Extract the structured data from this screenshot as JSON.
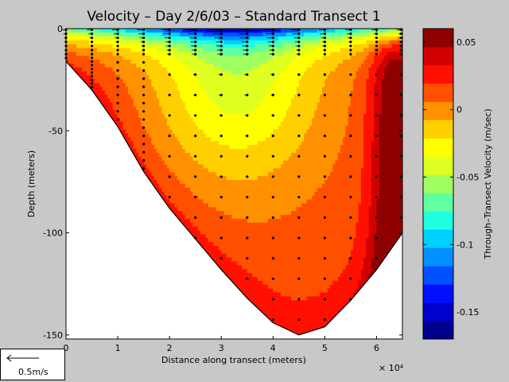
{
  "chart_data": {
    "type": "heatmap",
    "title": "Velocity – Day 2/6/03 – Standard Transect 1",
    "xlabel": "Distance along transect (meters)",
    "ylabel": "Depth (meters)",
    "x_multiplier_label": "× 10⁴",
    "xlim": [
      0,
      65000
    ],
    "ylim": [
      -152,
      0
    ],
    "x_ticks": [
      0,
      10000,
      20000,
      30000,
      40000,
      50000,
      60000
    ],
    "x_tick_labels": [
      "0",
      "1",
      "2",
      "3",
      "4",
      "5",
      "6"
    ],
    "y_ticks": [
      0,
      -50,
      -100,
      -150
    ],
    "y_tick_labels": [
      "0",
      "-50",
      "-100",
      "-150"
    ],
    "bottom_profile": [
      [
        0,
        -16
      ],
      [
        5000,
        -30
      ],
      [
        10000,
        -48
      ],
      [
        15000,
        -70
      ],
      [
        20000,
        -88
      ],
      [
        25000,
        -103
      ],
      [
        30000,
        -118
      ],
      [
        35000,
        -132
      ],
      [
        40000,
        -144
      ],
      [
        45000,
        -150
      ],
      [
        50000,
        -146
      ],
      [
        55000,
        -133
      ],
      [
        60000,
        -118
      ],
      [
        65000,
        -100
      ]
    ],
    "station_x": [
      0,
      5000,
      10000,
      15000,
      20000,
      25000,
      30000,
      35000,
      40000,
      45000,
      50000,
      55000,
      60000,
      65000
    ],
    "colorbar": {
      "label": "Through–Transect Velocity (m/sec)",
      "range": [
        -0.17,
        0.06
      ],
      "ticks": [
        0.05,
        0,
        -0.05,
        -0.1,
        -0.15
      ],
      "tick_labels": [
        "0.05",
        "0",
        "-0.05",
        "-0.1",
        "-0.15"
      ],
      "colors": [
        "#00008f",
        "#0000cf",
        "#0010ff",
        "#0050ff",
        "#0090ff",
        "#00d0ff",
        "#20ffdf",
        "#60ff9f",
        "#a0ff60",
        "#dfff20",
        "#ffff00",
        "#ffcf00",
        "#ff9000",
        "#ff5000",
        "#ff1000",
        "#d00000",
        "#8f0000"
      ]
    },
    "grid": false
  },
  "scale": {
    "label": "0.5m/s"
  }
}
